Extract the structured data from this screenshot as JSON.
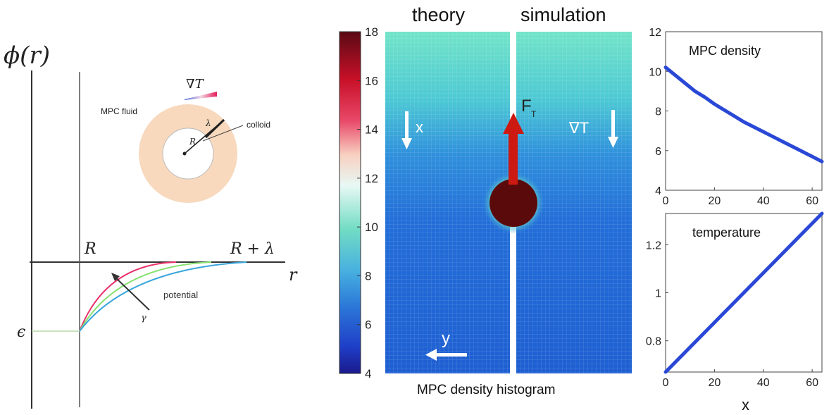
{
  "left_panel": {
    "y_axis_label": "ϕ(r)",
    "x_axis_label": "r",
    "tick_R": "R",
    "tick_R_lambda": "R + λ",
    "tick_epsilon": "ϵ",
    "potential_label": "potential",
    "arrow_symbol": "γ",
    "inset": {
      "grad_T": "∇T",
      "fluid_label": "MPC fluid",
      "colloid_label": "colloid",
      "lambda": "λ",
      "R": "R",
      "fluid_color": "#f8d9bd"
    },
    "curve_colors": [
      "#e8306a",
      "#86e070",
      "#3aa6dc"
    ]
  },
  "center_panel": {
    "label_theory": "theory",
    "label_simulation": "simulation",
    "caption": "MPC density histogram",
    "x_label": "x",
    "grad_label": "∇T",
    "force_label": "F",
    "force_sub": "T",
    "y_label": "y",
    "colorbar_ticks": [
      "18",
      "16",
      "14",
      "12",
      "10",
      "8",
      "6",
      "4"
    ],
    "colorbar_range": [
      4,
      18
    ],
    "colloid_color": "#5a0a0a",
    "force_color": "#cc1a12"
  },
  "chart_data": [
    {
      "type": "line",
      "title": "MPC density",
      "xlabel": "",
      "ylabel": "",
      "xlim": [
        0,
        64
      ],
      "ylim": [
        4,
        12
      ],
      "xticks": [
        "0",
        "20",
        "40",
        "60"
      ],
      "yticks": [
        "4",
        "6",
        "8",
        "10",
        "12"
      ],
      "x": [
        0,
        4,
        8,
        12,
        16,
        20,
        24,
        28,
        32,
        36,
        40,
        44,
        48,
        52,
        56,
        60,
        64
      ],
      "series": [
        {
          "values": [
            10.2,
            9.8,
            9.4,
            9.0,
            8.7,
            8.35,
            8.05,
            7.75,
            7.45,
            7.2,
            6.95,
            6.7,
            6.45,
            6.2,
            5.95,
            5.7,
            5.45
          ]
        }
      ],
      "color": "#2a48d6"
    },
    {
      "type": "line",
      "title": "temperature",
      "xlabel": "x",
      "ylabel": "",
      "xlim": [
        0,
        64
      ],
      "ylim": [
        0.67,
        1.33
      ],
      "xticks": [
        "0",
        "20",
        "40",
        "60"
      ],
      "yticks": [
        "0.8",
        "1",
        "1.2"
      ],
      "x": [
        0,
        64
      ],
      "series": [
        {
          "values": [
            0.67,
            1.33
          ]
        }
      ],
      "color": "#2a48d6"
    }
  ]
}
